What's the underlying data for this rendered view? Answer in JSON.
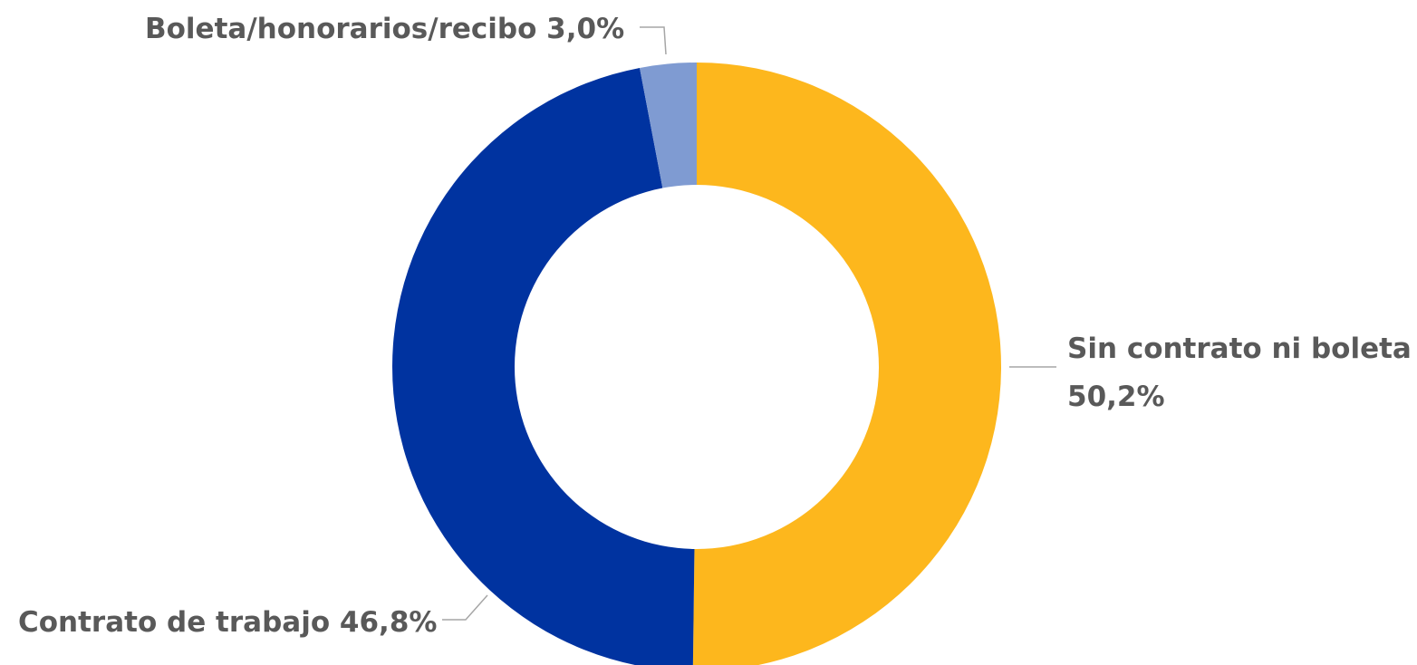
{
  "chart_data": {
    "type": "pie",
    "subtype": "donut",
    "title": "",
    "legend": "none",
    "slices": [
      {
        "label": "Sin contrato ni boleta",
        "value": 50.2,
        "value_label": "50,2%",
        "color": "#FDB71D"
      },
      {
        "label": "Contrato de trabajo",
        "value": 46.8,
        "value_label": "46,8%",
        "color": "#0033A0"
      },
      {
        "label": "Boleta/honorarios/recibo",
        "value": 3.0,
        "value_label": "3,0%",
        "color": "#7F9BD2"
      }
    ]
  }
}
